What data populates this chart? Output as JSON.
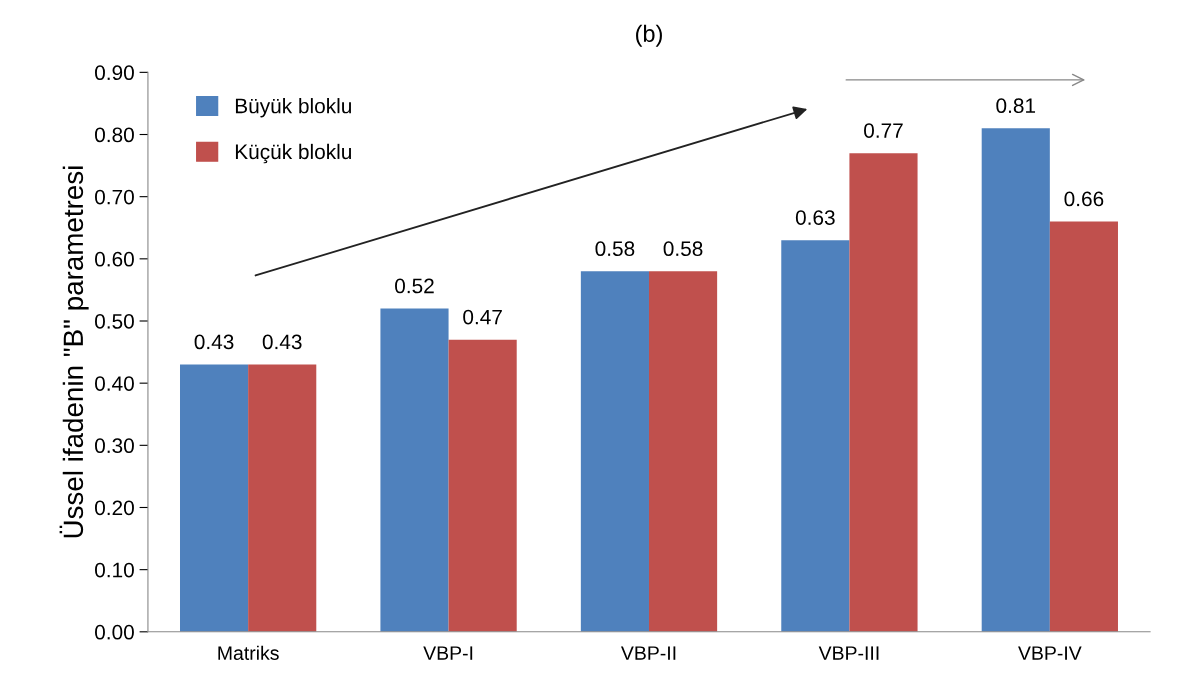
{
  "chart_data": {
    "type": "bar",
    "title": "(b)",
    "ylabel": "Üssel ifadenin \"B\" parametresi",
    "categories": [
      "Matriks",
      "VBP-I",
      "VBP-II",
      "VBP-III",
      "VBP-IV"
    ],
    "series": [
      {
        "name": "Büyük bloklu",
        "color": "#4f81bd",
        "values": [
          0.43,
          0.52,
          0.58,
          0.63,
          0.81
        ]
      },
      {
        "name": "Küçük bloklu",
        "color": "#c0504d",
        "values": [
          0.43,
          0.47,
          0.58,
          0.77,
          0.66
        ]
      }
    ],
    "ylim": [
      0,
      0.9
    ],
    "yticks": [
      {
        "value": 0,
        "label": "0.00"
      },
      {
        "value": 0.1,
        "label": "0.10"
      },
      {
        "value": 0.2,
        "label": "0.20"
      },
      {
        "value": 0.3,
        "label": "0.30"
      },
      {
        "value": 0.4,
        "label": "0.40"
      },
      {
        "value": 0.5,
        "label": "0.50"
      },
      {
        "value": 0.6,
        "label": "0.60"
      },
      {
        "value": 0.7,
        "label": "0.70"
      },
      {
        "value": 0.8,
        "label": "0.80"
      },
      {
        "value": 0.9,
        "label": "0.90"
      }
    ],
    "data_labels": true,
    "grid": false,
    "legend": "top left"
  }
}
